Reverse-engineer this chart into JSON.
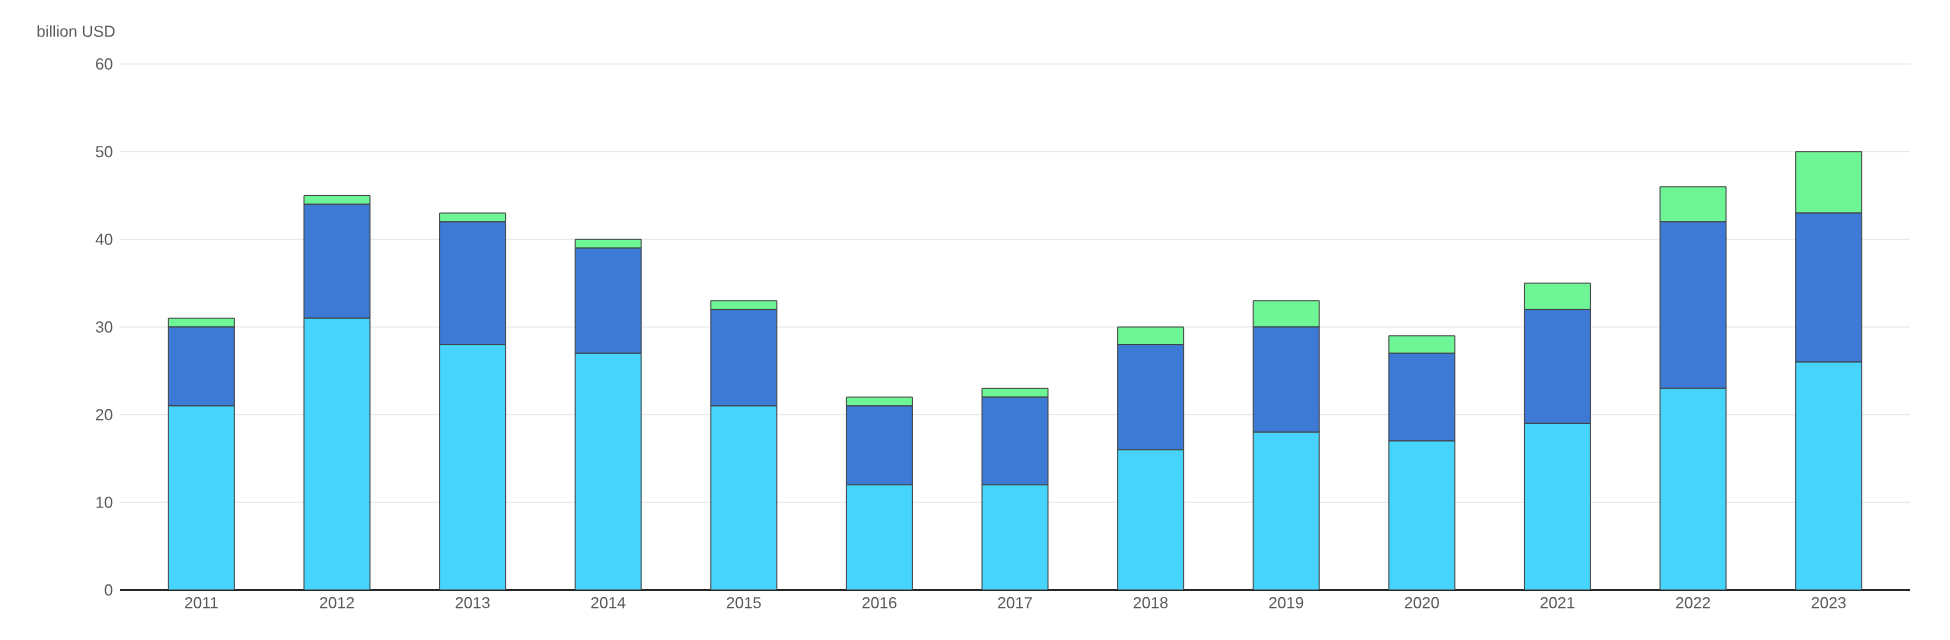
{
  "chart_data": {
    "type": "bar",
    "ylabel": "billion USD",
    "categories": [
      "2011",
      "2012",
      "2013",
      "2014",
      "2015",
      "2016",
      "2017",
      "2018",
      "2019",
      "2020",
      "2021",
      "2022",
      "2023"
    ],
    "stacked": true,
    "series": [
      {
        "color": "#47d4fc",
        "values": [
          21,
          31,
          28,
          27,
          21,
          12,
          12,
          16,
          18,
          17,
          19,
          23,
          26
        ]
      },
      {
        "color": "#3d7ad6",
        "values": [
          9,
          13,
          14,
          12,
          11,
          9,
          10,
          12,
          12,
          10,
          13,
          19,
          17
        ]
      },
      {
        "color": "#6ef596",
        "values": [
          1,
          1,
          1,
          1,
          1,
          1,
          1,
          2,
          3,
          2,
          3,
          4,
          7
        ]
      }
    ],
    "ylim": [
      0,
      60
    ],
    "yticks": [
      0,
      10,
      20,
      30,
      40,
      50,
      60
    ],
    "grid": "y"
  }
}
